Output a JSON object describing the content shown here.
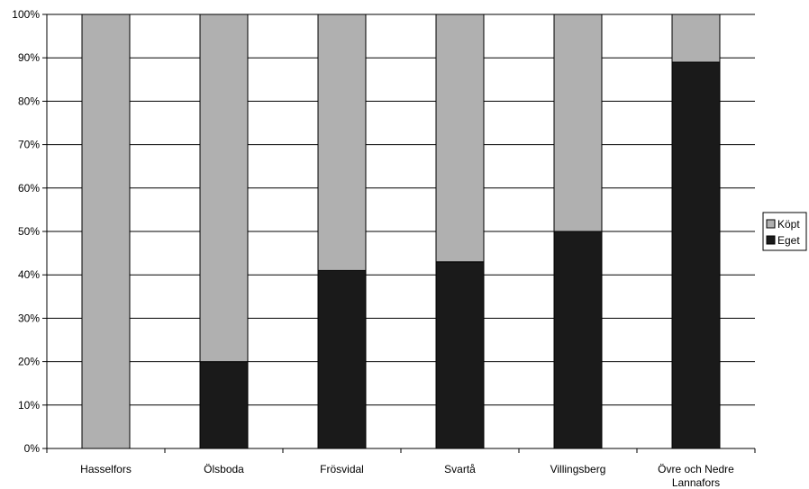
{
  "chart_data": {
    "type": "bar",
    "stacked": true,
    "percent_stacked": true,
    "categories": [
      "Hasselfors",
      "Ölsboda",
      "Frösvidal",
      "Svartå",
      "Villingsberg",
      "Övre och Nedre Lannafors"
    ],
    "category_labels": [
      [
        "Hasselfors"
      ],
      [
        "Ölsboda"
      ],
      [
        "Frösvidal"
      ],
      [
        "Svartå"
      ],
      [
        "Villingsberg"
      ],
      [
        "Övre och Nedre",
        "Lannafors"
      ]
    ],
    "series": [
      {
        "name": "Eget",
        "values": [
          0,
          20,
          41,
          43,
          50,
          89
        ],
        "color": "#1a1a1a"
      },
      {
        "name": "Köpt",
        "values": [
          100,
          80,
          59,
          57,
          50,
          11
        ],
        "color": "#b0b0b0"
      }
    ],
    "title": "",
    "xlabel": "",
    "ylabel": "",
    "ylim": [
      0,
      100
    ],
    "yticks": [
      "0%",
      "10%",
      "20%",
      "30%",
      "40%",
      "50%",
      "60%",
      "70%",
      "80%",
      "90%",
      "100%"
    ],
    "grid": true,
    "legend_position": "right"
  }
}
